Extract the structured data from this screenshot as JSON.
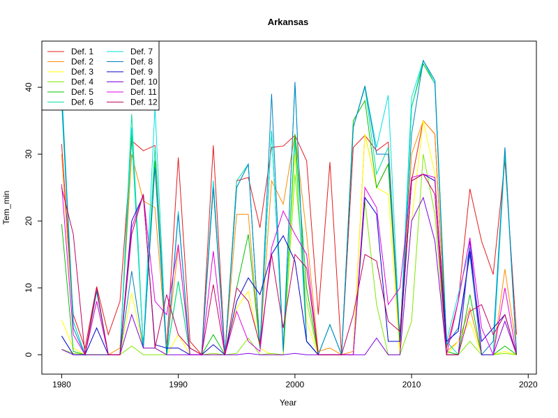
{
  "chart_data": {
    "type": "line",
    "title": "Arkansas",
    "xlabel": "Year",
    "ylabel": "Tem_min",
    "xlim": [
      1978.3,
      2020.7
    ],
    "ylim": [
      -2.9,
      46.9
    ],
    "x_ticks": [
      1980,
      1990,
      2000,
      2010,
      2020
    ],
    "y_ticks": [
      0,
      10,
      20,
      30,
      40
    ],
    "grid": false,
    "legend_position": "top-left",
    "x": [
      1980,
      1981,
      1982,
      1983,
      1984,
      1985,
      1986,
      1987,
      1988,
      1989,
      1990,
      1991,
      1992,
      1993,
      1994,
      1995,
      1996,
      1997,
      1998,
      1999,
      2000,
      2001,
      2002,
      2003,
      2004,
      2005,
      2006,
      2007,
      2008,
      2009,
      2010,
      2011,
      2012,
      2013,
      2014,
      2015,
      2016,
      2017,
      2018,
      2019
    ],
    "series": [
      {
        "name": "Def. 1",
        "color": "#E41A1C",
        "values": [
          31.5,
          6,
          1,
          10.2,
          3,
          8,
          32,
          30.5,
          31.3,
          1,
          29.5,
          2,
          0,
          31.3,
          0,
          26,
          26.5,
          19,
          31,
          31.2,
          32.8,
          29,
          6,
          28.8,
          0,
          31,
          32.8,
          30.5,
          31.8,
          2,
          26,
          35,
          33,
          1,
          8,
          24.8,
          17,
          12,
          29,
          3
        ]
      },
      {
        "name": "Def. 2",
        "color": "#FF8C00",
        "values": [
          30,
          5,
          0,
          8,
          0,
          1,
          30,
          23,
          22,
          1,
          16,
          1,
          0,
          25,
          0,
          21,
          21,
          1,
          26,
          22.5,
          33,
          18,
          0.5,
          1,
          0,
          0.5,
          33,
          25,
          28.5,
          1,
          30,
          35,
          33,
          0.5,
          2,
          7,
          0,
          0,
          12.8,
          1
        ]
      },
      {
        "name": "Def. 3",
        "color": "#FFFF00",
        "values": [
          5.2,
          1,
          0,
          0,
          0,
          0,
          9.2,
          1,
          1,
          0,
          3,
          0,
          0,
          0,
          0,
          7,
          9.5,
          1,
          0,
          0,
          30,
          5,
          0,
          0,
          0,
          0,
          33,
          25,
          24,
          0,
          20,
          35,
          27,
          0,
          2,
          5,
          0,
          0,
          0.5,
          0
        ]
      },
      {
        "name": "Def. 4",
        "color": "#80E800",
        "values": [
          0.8,
          0.2,
          0,
          0,
          0,
          0,
          1.3,
          0,
          0,
          0,
          11,
          0,
          0,
          0.2,
          0,
          0.2,
          2.5,
          0,
          0.2,
          0,
          27,
          8,
          0,
          0,
          0,
          0,
          23,
          7.5,
          0,
          0,
          5,
          30,
          21,
          0,
          0,
          2,
          0,
          0,
          0.2,
          0
        ]
      },
      {
        "name": "Def. 5",
        "color": "#00C000",
        "values": [
          19.5,
          0.5,
          0,
          0,
          0,
          0,
          33,
          1,
          29,
          0,
          11,
          0,
          0,
          3,
          0,
          10,
          18,
          1,
          33.5,
          0.5,
          33,
          10,
          0,
          0,
          0,
          35,
          38,
          25,
          28.5,
          2,
          37,
          43.5,
          40.5,
          0.5,
          0,
          9,
          0,
          0,
          1.3,
          0
        ]
      },
      {
        "name": "Def. 6",
        "color": "#00E0A0",
        "values": [
          40,
          5,
          0,
          9.5,
          0,
          0,
          36,
          1,
          31,
          0,
          11,
          0,
          0,
          26,
          0,
          26,
          28.5,
          1,
          33.5,
          1,
          32,
          2,
          0,
          4.5,
          0,
          34,
          40,
          27,
          31,
          2,
          37,
          44,
          41,
          2,
          0,
          16,
          0,
          0,
          30,
          0
        ]
      },
      {
        "name": "Def. 7",
        "color": "#00E0E0",
        "values": [
          37.5,
          5,
          0,
          9.5,
          0,
          0,
          34,
          1,
          37,
          0,
          21.5,
          0,
          0,
          26,
          0,
          25,
          28.5,
          1,
          33.5,
          1,
          40.5,
          2,
          0,
          4.5,
          0,
          34,
          40.2,
          31,
          38.8,
          2,
          38.5,
          44,
          40.5,
          2,
          9,
          16,
          0,
          0,
          31,
          0
        ]
      },
      {
        "name": "Def. 8",
        "color": "#0080C0",
        "values": [
          39,
          4,
          0,
          9.5,
          0,
          0,
          12.5,
          1,
          28,
          0,
          21,
          0,
          0,
          25,
          0,
          25,
          28.5,
          1,
          39,
          0.5,
          40.8,
          2,
          0,
          4.5,
          0,
          34,
          40.2,
          30,
          30,
          2,
          33,
          44,
          41,
          1.5,
          4,
          15,
          0,
          2,
          31,
          0
        ]
      },
      {
        "name": "Def. 9",
        "color": "#0000CC",
        "values": [
          2.8,
          0,
          0,
          4,
          0,
          0,
          20,
          23.8,
          1.5,
          1,
          1,
          0,
          0,
          1.5,
          0,
          8,
          11.5,
          9,
          15,
          17.8,
          14,
          2,
          0,
          0,
          0,
          0,
          23.5,
          21,
          2,
          2,
          26,
          27,
          26,
          2,
          3.5,
          15.5,
          2,
          4,
          6,
          0
        ]
      },
      {
        "name": "Def. 10",
        "color": "#8000E0",
        "values": [
          0.8,
          0,
          0,
          0,
          0,
          0,
          6,
          1,
          1,
          0,
          0,
          0,
          0,
          0,
          0,
          0,
          0.2,
          0,
          0,
          0,
          0.2,
          0,
          0,
          0,
          0,
          0,
          0,
          2.5,
          0,
          0,
          20,
          23.5,
          17,
          0,
          0,
          17,
          0,
          0,
          5,
          0
        ]
      },
      {
        "name": "Def. 11",
        "color": "#E000E0",
        "values": [
          25.5,
          3,
          0,
          8,
          0,
          0,
          19,
          24,
          8,
          6,
          16.5,
          0,
          0,
          15.5,
          0,
          6.5,
          2,
          0.5,
          16,
          21.5,
          18,
          15,
          0,
          0,
          0,
          0,
          25,
          22,
          7.5,
          10,
          26.5,
          27,
          26.5,
          0,
          8,
          17.5,
          4,
          0,
          10,
          0
        ]
      },
      {
        "name": "Def. 12",
        "color": "#C00060",
        "values": [
          25,
          18,
          0,
          10,
          0,
          0,
          18,
          24,
          1,
          9,
          3,
          1,
          0,
          10.5,
          0,
          10,
          8,
          1.5,
          15,
          4,
          15,
          13,
          0,
          0,
          0,
          6,
          15,
          14,
          5,
          3.5,
          26,
          27,
          24,
          0,
          0,
          6.5,
          7.5,
          3,
          6,
          0
        ]
      }
    ]
  }
}
